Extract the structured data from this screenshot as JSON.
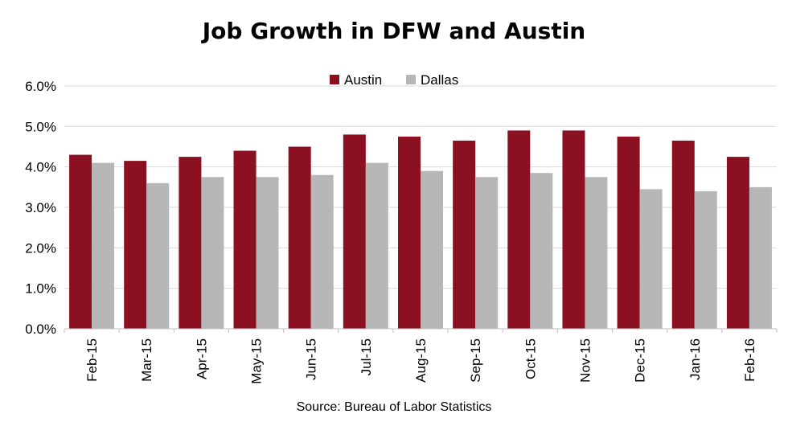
{
  "chart_data": {
    "type": "bar",
    "title": "Job Growth in DFW and Austin",
    "source": "Source: Bureau of Labor Statistics",
    "categories": [
      "Feb-15",
      "Mar-15",
      "Apr-15",
      "May-15",
      "Jun-15",
      "Jul-15",
      "Aug-15",
      "Sep-15",
      "Oct-15",
      "Nov-15",
      "Dec-15",
      "Jan-16",
      "Feb-16"
    ],
    "series": [
      {
        "name": "Austin",
        "color": "#8b1022",
        "values": [
          4.3,
          4.15,
          4.25,
          4.4,
          4.5,
          4.8,
          4.75,
          4.65,
          4.9,
          4.9,
          4.75,
          4.65,
          4.25
        ]
      },
      {
        "name": "Dallas",
        "color": "#b7b7b7",
        "values": [
          4.1,
          3.6,
          3.75,
          3.75,
          3.8,
          4.1,
          3.9,
          3.75,
          3.85,
          3.75,
          3.45,
          3.4,
          3.5
        ]
      }
    ],
    "yticks": [
      "0.0%",
      "1.0%",
      "2.0%",
      "3.0%",
      "4.0%",
      "5.0%",
      "6.0%"
    ],
    "ylim": [
      0,
      6
    ],
    "grid": true,
    "legend": "top-center",
    "xlabel": "",
    "ylabel": ""
  }
}
